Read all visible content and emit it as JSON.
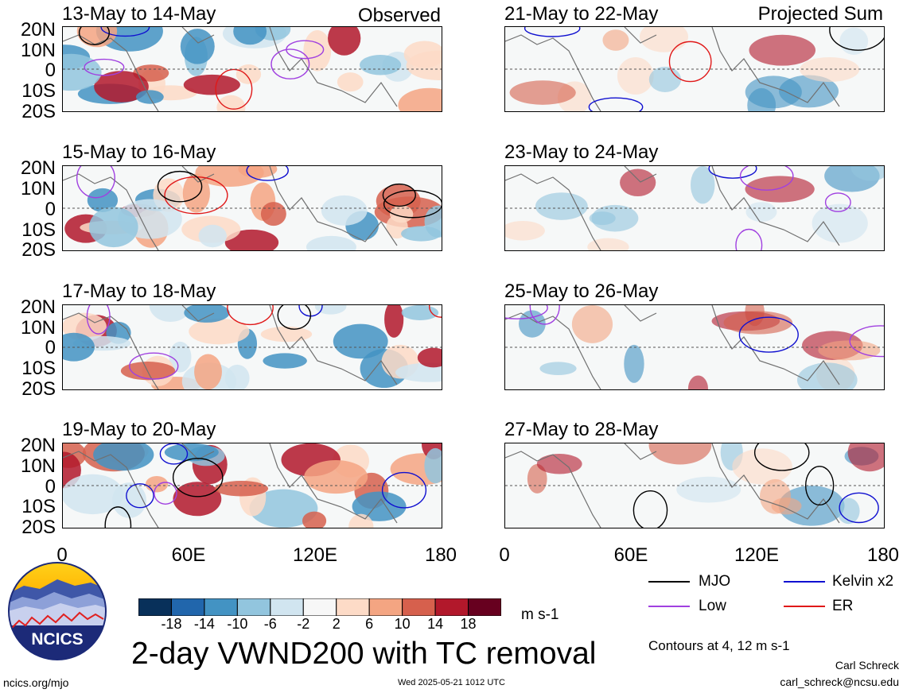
{
  "panels": [
    {
      "title": "13-May to 14-May",
      "label": "Observed"
    },
    {
      "title": "15-May to 16-May",
      "label": ""
    },
    {
      "title": "17-May to 18-May",
      "label": ""
    },
    {
      "title": "19-May to 20-May",
      "label": ""
    },
    {
      "title": "21-May to 22-May",
      "label": "Projected Sum"
    },
    {
      "title": "23-May to 24-May",
      "label": ""
    },
    {
      "title": "25-May to 26-May",
      "label": ""
    },
    {
      "title": "27-May to 28-May",
      "label": ""
    }
  ],
  "lat_labels": [
    "20N",
    "10N",
    "0",
    "10S",
    "20S"
  ],
  "lon_labels": [
    "0",
    "60E",
    "120E",
    "180"
  ],
  "legend": {
    "mjo": {
      "label": "MJO",
      "color": "#000000"
    },
    "kelvin": {
      "label": "Kelvin x2",
      "color": "#1010d0"
    },
    "low": {
      "label": "Low",
      "color": "#a040e0"
    },
    "er": {
      "label": "ER",
      "color": "#e01818"
    },
    "contours_note": "Contours at 4, 12 m s-1"
  },
  "colorbar": {
    "ticks": [
      "-18",
      "-14",
      "-10",
      "-6",
      "-2",
      "2",
      "6",
      "10",
      "14",
      "18"
    ],
    "colors": [
      "#08305a",
      "#2166ac",
      "#4393c3",
      "#92c5de",
      "#d1e5f0",
      "#f7f7f7",
      "#fddbc7",
      "#f4a582",
      "#d6604d",
      "#b2182b",
      "#67001f"
    ],
    "units": "m s-1"
  },
  "logo_text": "NCICS",
  "main_title": "2-day VWND200 with TC removal",
  "footer": {
    "url": "ncics.org/mjo",
    "timestamp": "Wed 2025-05-21 1012 UTC",
    "author": "Carl Schreck",
    "email": "carl_schreck@ncsu.edu"
  }
}
